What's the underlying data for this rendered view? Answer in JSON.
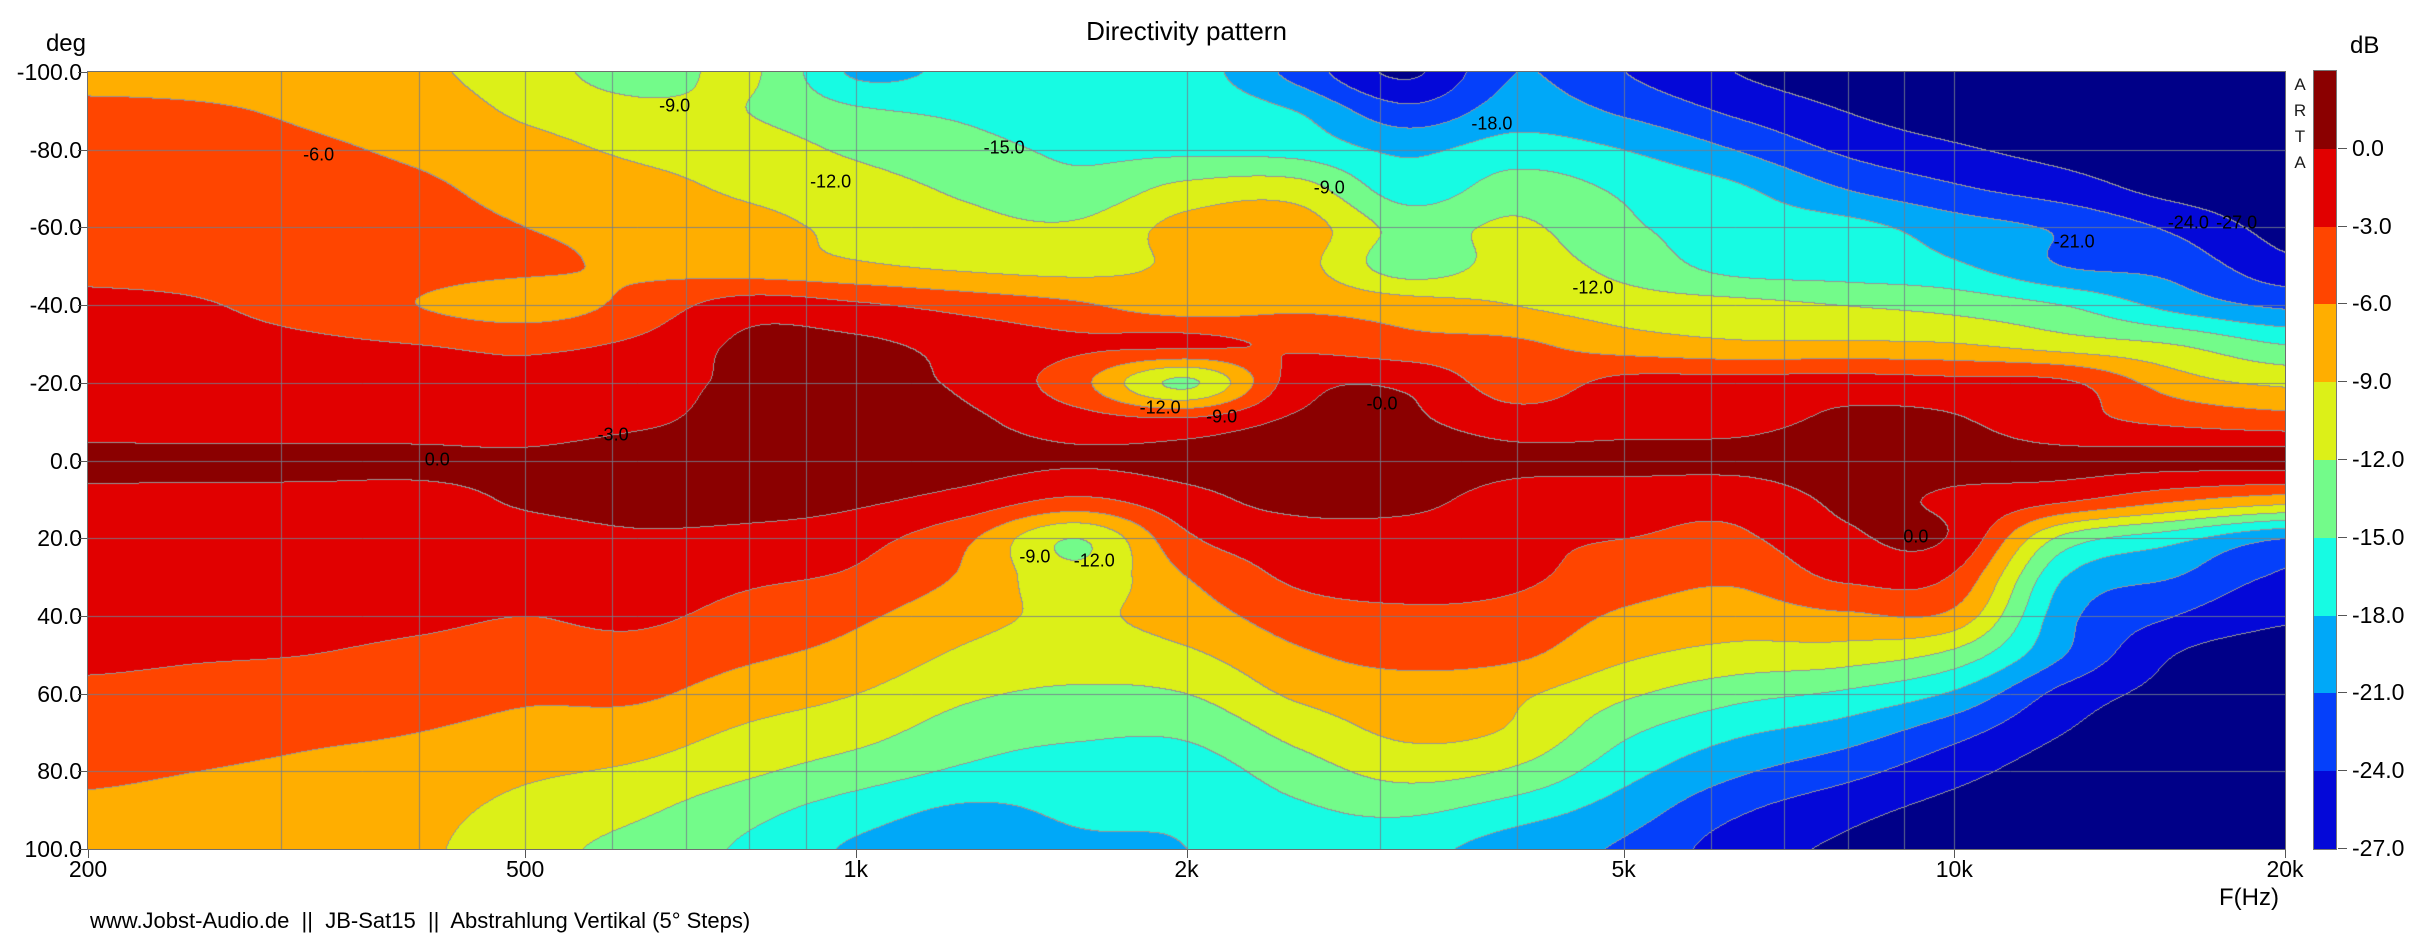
{
  "title": "Directivity pattern",
  "y_axis": {
    "unit_label": "deg",
    "tick_labels": [
      "-100.0",
      "-80.0",
      "-60.0",
      "-40.0",
      "-20.0",
      "0.0",
      "20.0",
      "40.0",
      "60.0",
      "80.0",
      "100.0"
    ],
    "tick_angles": [
      -100,
      -80,
      -60,
      -40,
      -20,
      0,
      20,
      40,
      60,
      80,
      100
    ]
  },
  "x_axis": {
    "unit_label": "F(Hz)",
    "ticks": [
      {
        "label": "200",
        "f": 200
      },
      {
        "label": "500",
        "f": 500
      },
      {
        "label": "1k",
        "f": 1000
      },
      {
        "label": "2k",
        "f": 2000
      },
      {
        "label": "5k",
        "f": 5000
      },
      {
        "label": "10k",
        "f": 10000
      },
      {
        "label": "20k",
        "f": 20000
      }
    ]
  },
  "colorbar": {
    "unit_label": "dB",
    "tick_labels": [
      "0.0",
      "-3.0",
      "-6.0",
      "-9.0",
      "-12.0",
      "-15.0",
      "-18.0",
      "-21.0",
      "-24.0",
      "-27.0"
    ]
  },
  "watermark_letters": [
    "A",
    "R",
    "T",
    "A"
  ],
  "footer": "www.Jobst-Audio.de  ||  JB-Sat15  ||  Abstrahlung Vertikal (5° Steps)",
  "chart_data": {
    "type": "heatmap",
    "subtype": "directivity-contour-sonogram",
    "title": "Directivity pattern",
    "xlabel": "F(Hz)",
    "ylabel": "deg",
    "x_scale": "log",
    "x_range_hz": [
      200,
      20000
    ],
    "y_range_deg": [
      -100,
      100
    ],
    "level_step_db": 3,
    "colorbar_range_db": [
      0,
      -27
    ],
    "palette_hex": [
      "#8B0000",
      "#E10000",
      "#FF4500",
      "#FFAE00",
      "#DCF018",
      "#73FB8A",
      "#17FBE3",
      "#00A8F8",
      "#0540FA",
      "#0408D8",
      "#000088"
    ],
    "contour_line_color": "#969696",
    "grid_line_color": "#7d8globe",
    "minor_grid_freqs_hz": [
      300,
      400,
      500,
      600,
      700,
      800,
      900,
      1000,
      2000,
      3000,
      4000,
      5000,
      6000,
      7000,
      8000,
      9000,
      10000
    ],
    "grid_angles_deg": [
      -80,
      -60,
      -40,
      -20,
      0,
      20,
      40,
      60,
      80
    ],
    "freqs_hz": [
      200,
      250,
      315,
      400,
      500,
      630,
      800,
      1000,
      1250,
      1600,
      2000,
      2500,
      3150,
      4000,
      5000,
      6300,
      8000,
      10000,
      12500,
      16000,
      20000
    ],
    "angles_deg": [
      -100,
      -90,
      -80,
      -70,
      -60,
      -50,
      -40,
      -30,
      -20,
      -10,
      0,
      10,
      20,
      30,
      40,
      50,
      60,
      70,
      80,
      90,
      100
    ],
    "values_db": [
      [
        -7.5,
        -7.5,
        -7.8,
        -8.5,
        -10.5,
        -13.5,
        -11.5,
        -18.5,
        -17,
        -16,
        -16.5,
        -22,
        -27.5,
        -21,
        -24,
        -27,
        -28.5,
        -29,
        -29,
        -29,
        -29
      ],
      [
        -5,
        -5.5,
        -6.5,
        -7.5,
        -9.5,
        -11,
        -12,
        -14.5,
        -15.5,
        -16.5,
        -16,
        -18,
        -23,
        -19.5,
        -21.5,
        -24.5,
        -27,
        -28.5,
        -29,
        -29,
        -29
      ],
      [
        -4.5,
        -4.8,
        -5.5,
        -6.5,
        -8,
        -9.5,
        -10.5,
        -12.5,
        -14,
        -15.5,
        -15.5,
        -16,
        -18.5,
        -16.5,
        -18,
        -21,
        -24.5,
        -26.5,
        -28,
        -29,
        -29
      ],
      [
        -4,
        -4.2,
        -4.8,
        -5.5,
        -7,
        -8,
        -9.5,
        -10.8,
        -12.5,
        -14,
        -11,
        -10.5,
        -16.5,
        -13.5,
        -15.5,
        -17.5,
        -21,
        -23.5,
        -25.5,
        -28,
        -29
      ],
      [
        -3.8,
        -4,
        -4.4,
        -5,
        -6,
        -7,
        -8,
        -9.8,
        -11,
        -11.5,
        -8,
        -7.5,
        -13,
        -11.5,
        -14.5,
        -16.5,
        -17,
        -19.5,
        -21.5,
        -24.5,
        -28
      ],
      [
        -3.5,
        -3.8,
        -4.2,
        -4.8,
        -5.5,
        -6.5,
        -7.5,
        -8.5,
        -9.5,
        -10,
        -8.5,
        -8,
        -13.5,
        -10.8,
        -13,
        -16,
        -16.5,
        -17.5,
        -21,
        -22,
        -26
      ],
      [
        -2.5,
        -2.8,
        -4,
        -6,
        -7.5,
        -5,
        -1.5,
        -2.5,
        -4,
        -5.5,
        -7.5,
        -6.5,
        -7.5,
        -9,
        -10.5,
        -11,
        -12,
        -13,
        -15,
        -19,
        -21.5
      ],
      [
        -2,
        -2.2,
        -2.5,
        -3,
        -3.5,
        -2.5,
        0.5,
        0.5,
        -1,
        -2.5,
        -2.5,
        -3.5,
        -5,
        -5.5,
        -7.5,
        -8.5,
        -8.5,
        -8.8,
        -10.5,
        -12,
        -15
      ],
      [
        -1.5,
        -1.6,
        -1.8,
        -2,
        -2.5,
        -1.2,
        0.5,
        0.5,
        -0.5,
        -5,
        -12.5,
        -1.5,
        -0.5,
        -4.5,
        -2,
        -1.8,
        -1.5,
        -2,
        -2.5,
        -7.5,
        -9.5
      ],
      [
        -1.2,
        -1.3,
        -1.4,
        -1.5,
        -1.8,
        -0.5,
        1,
        1,
        0.5,
        -1.5,
        -2,
        0.5,
        0.5,
        -1.5,
        -1,
        -0.8,
        0.5,
        0.3,
        -2,
        -3.5,
        -4.5
      ],
      [
        0.8,
        0.8,
        0.8,
        0.8,
        0.8,
        2,
        2,
        1.5,
        1,
        0.3,
        0.8,
        2,
        2,
        0.8,
        0.8,
        0.8,
        1.5,
        1,
        0.8,
        0.8,
        1
      ],
      [
        -0.8,
        -0.9,
        -1,
        -1.2,
        0.5,
        1.5,
        1.5,
        0.5,
        -1,
        -3.5,
        -1,
        1,
        1,
        -1.5,
        -1.8,
        -2,
        0.5,
        -0.5,
        -2.5,
        -5.5,
        -7.5
      ],
      [
        -1.5,
        -1.6,
        -1.8,
        -2,
        -1.5,
        -0.5,
        -1,
        -2,
        -5.5,
        -12,
        -3.5,
        -1.5,
        -1.5,
        -2.5,
        -3,
        -3.5,
        -0.5,
        -0.5,
        -13,
        -17,
        -21
      ],
      [
        -1,
        -1.1,
        -1.2,
        -1.5,
        -2,
        -1.5,
        -2.5,
        -3.5,
        -6.5,
        -11,
        -6,
        -2.5,
        -2,
        -2.5,
        -4.5,
        -5.5,
        -2.5,
        -3.5,
        -18,
        -21,
        -24.5
      ],
      [
        -1.8,
        -2,
        -2.2,
        -2.5,
        -3,
        -2.5,
        -4,
        -5.5,
        -8,
        -9.5,
        -7.5,
        -4.5,
        -3.5,
        -4,
        -6.5,
        -7.5,
        -6.5,
        -7,
        -20,
        -24,
        -26.5
      ],
      [
        -2.5,
        -2.8,
        -3,
        -3.5,
        -4,
        -4,
        -5.5,
        -7,
        -9.5,
        -10.5,
        -9.5,
        -6.5,
        -5,
        -5.5,
        -8.5,
        -10,
        -10.5,
        -13,
        -21,
        -27,
        -28.5
      ],
      [
        -3.5,
        -3.8,
        -4,
        -4.5,
        -5.5,
        -5.5,
        -7.5,
        -9,
        -11.5,
        -12.5,
        -12,
        -8.5,
        -7.5,
        -8.5,
        -11.5,
        -14,
        -15.5,
        -18.5,
        -25,
        -28,
        -29
      ],
      [
        -4.5,
        -5,
        -5.5,
        -6,
        -7,
        -7.5,
        -9.5,
        -11,
        -13.5,
        -14.5,
        -14.5,
        -11,
        -8.5,
        -9.5,
        -14.5,
        -17.5,
        -19.5,
        -23,
        -27,
        -29,
        -29
      ],
      [
        -5.5,
        -6,
        -6.5,
        -7,
        -8.5,
        -9.5,
        -11.5,
        -13.5,
        -15.5,
        -16.5,
        -16.5,
        -13.5,
        -11,
        -12.5,
        -17,
        -20.5,
        -23,
        -26,
        -28.5,
        -29,
        -29
      ],
      [
        -6.5,
        -7,
        -7.5,
        -8,
        -10,
        -11.5,
        -14,
        -16.5,
        -18.5,
        -17.5,
        -17.5,
        -15.5,
        -14.5,
        -16.5,
        -19.5,
        -23.5,
        -26,
        -28,
        -29,
        -29,
        -29
      ],
      [
        -7,
        -7.5,
        -8,
        -8.5,
        -11,
        -13,
        -15.5,
        -18.5,
        -20,
        -18.5,
        -18,
        -16.5,
        -17,
        -19.5,
        -21.5,
        -25.5,
        -27.5,
        -29,
        -29,
        -29,
        -29
      ]
    ],
    "contour_labels": [
      {
        "text": "-6.0",
        "x_pct": 10.5,
        "y_pct": 10.7
      },
      {
        "text": "-9.0",
        "x_pct": 26.7,
        "y_pct": 4.4
      },
      {
        "text": "-12.0",
        "x_pct": 33.8,
        "y_pct": 14.2
      },
      {
        "text": "-15.0",
        "x_pct": 41.7,
        "y_pct": 9.8
      },
      {
        "text": "-9.0",
        "x_pct": 56.5,
        "y_pct": 14.9
      },
      {
        "text": "-18.0",
        "x_pct": 63.9,
        "y_pct": 6.7
      },
      {
        "text": "-12.0",
        "x_pct": 68.5,
        "y_pct": 27.8
      },
      {
        "text": "-21.0",
        "x_pct": 90.4,
        "y_pct": 21.9
      },
      {
        "text": "-24.0",
        "x_pct": 95.6,
        "y_pct": 19.4
      },
      {
        "text": "-27.0",
        "x_pct": 97.8,
        "y_pct": 19.4
      },
      {
        "text": "-3.0",
        "x_pct": 23.9,
        "y_pct": 46.7
      },
      {
        "text": "0.0",
        "x_pct": 15.9,
        "y_pct": 49.9
      },
      {
        "text": "-12.0",
        "x_pct": 48.8,
        "y_pct": 43.2
      },
      {
        "text": "-9.0",
        "x_pct": 51.6,
        "y_pct": 44.4
      },
      {
        "text": "-0.0",
        "x_pct": 58.9,
        "y_pct": 42.7
      },
      {
        "text": "-9.0",
        "x_pct": 43.1,
        "y_pct": 62.4
      },
      {
        "text": "-12.0",
        "x_pct": 45.8,
        "y_pct": 62.9
      },
      {
        "text": "0.0",
        "x_pct": 83.2,
        "y_pct": 59.8
      }
    ]
  }
}
